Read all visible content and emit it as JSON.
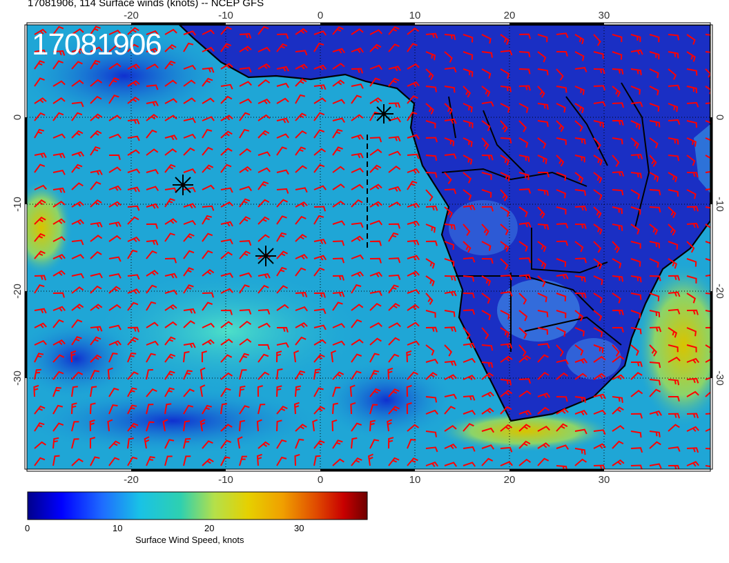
{
  "title": "17081906, 114 Surface winds (knots) -- NCEP GFS",
  "stamp": "17081906",
  "colorbar": {
    "label": "Surface Wind Speed, knots",
    "ticks": [
      "0",
      "10",
      "20",
      "30"
    ],
    "colors": [
      "#00008b",
      "#0000ff",
      "#1e6cff",
      "#19c2e6",
      "#2ed0b0",
      "#b4e04a",
      "#e6d000",
      "#f0a000",
      "#e04a00",
      "#c80000",
      "#6e0000"
    ]
  },
  "axes": {
    "lon_labels": [
      "-20",
      "-10",
      "0",
      "10",
      "20",
      "30"
    ],
    "lat_labels": [
      "0",
      "-10",
      "-20",
      "-30"
    ]
  },
  "colors": {
    "barb": "#ff0000",
    "ocean": "#1fa6d6",
    "land": "#1a2fc4"
  },
  "markers": [
    "storm-marker-1",
    "storm-marker-2",
    "storm-marker-3"
  ]
}
